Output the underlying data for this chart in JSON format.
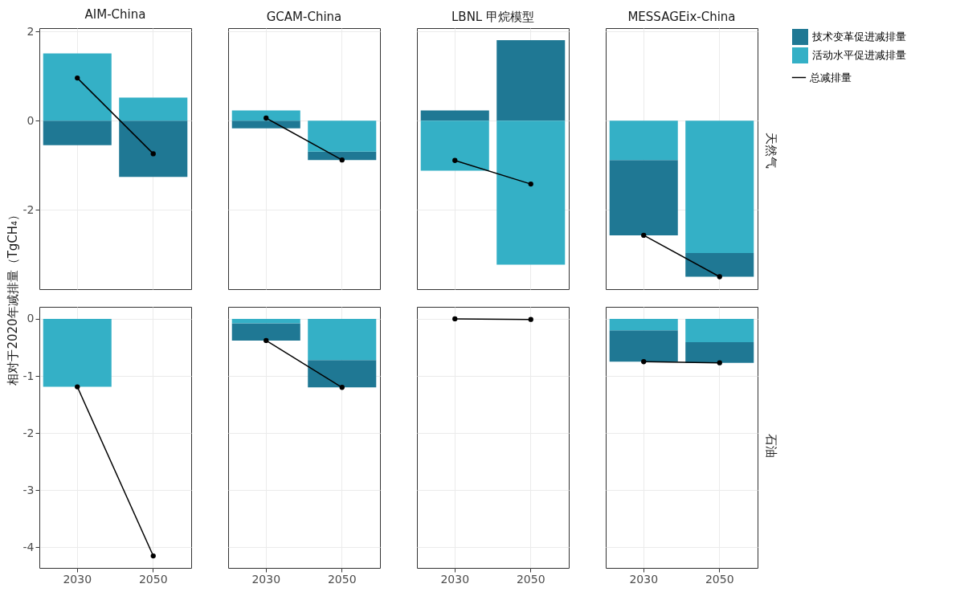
{
  "chart_data": [
    {
      "type": "bar",
      "title": "AIM-China",
      "ylabel": "相对于2020年减排量（TgCH₄）",
      "categories": [
        "2030",
        "2050"
      ],
      "stacked": true,
      "ylim": [
        -3.78,
        2.08
      ],
      "yticks": [
        -2,
        0,
        2
      ],
      "grid": true,
      "legend": "right",
      "tick_labels": "y",
      "series": [
        {
          "name": "技术变革促进减排量",
          "color": "#1f7894",
          "values": [
            -0.55,
            -1.26
          ]
        },
        {
          "name": "活动水平促进减排量",
          "color": "#34b0c6",
          "values": [
            1.51,
            0.52
          ]
        },
        {
          "name": "总减排量",
          "type": "line",
          "color": "#000000",
          "marker": "circle",
          "values": [
            0.96,
            -0.74
          ]
        }
      ]
    },
    {
      "type": "bar",
      "title": "GCAM-China",
      "categories": [
        "2030",
        "2050"
      ],
      "stacked": true,
      "ylim": [
        -3.78,
        2.08
      ],
      "yticks": [
        -2,
        0,
        2
      ],
      "grid": true,
      "legend": "right",
      "tick_labels": false,
      "series": [
        {
          "name": "技术变革促进减排量",
          "color": "#1f7894",
          "values": [
            -0.17,
            -0.19
          ]
        },
        {
          "name": "活动水平促进减排量",
          "color": "#34b0c6",
          "values": [
            0.23,
            -0.69
          ]
        },
        {
          "name": "总减排量",
          "type": "line",
          "color": "#000000",
          "marker": "circle",
          "values": [
            0.06,
            -0.88
          ]
        }
      ]
    },
    {
      "type": "bar",
      "title": "LBNL 甲烷模型",
      "categories": [
        "2030",
        "2050"
      ],
      "stacked": true,
      "ylim": [
        -3.78,
        2.08
      ],
      "yticks": [
        -2,
        0,
        2
      ],
      "grid": true,
      "legend": "right",
      "tick_labels": false,
      "series": [
        {
          "name": "技术变革促进减排量",
          "color": "#1f7894",
          "values": [
            0.23,
            1.81
          ]
        },
        {
          "name": "活动水平促进减排量",
          "color": "#34b0c6",
          "values": [
            -1.12,
            -3.23
          ]
        },
        {
          "name": "总减排量",
          "type": "line",
          "color": "#000000",
          "marker": "circle",
          "values": [
            -0.89,
            -1.42
          ]
        }
      ]
    },
    {
      "type": "bar",
      "title": "MESSAGEix-China",
      "annotations": [
        "天然气"
      ],
      "categories": [
        "2030",
        "2050"
      ],
      "stacked": true,
      "ylim": [
        -3.78,
        2.08
      ],
      "yticks": [
        -2,
        0,
        2
      ],
      "grid": true,
      "legend": "right",
      "tick_labels": false,
      "series": [
        {
          "name": "技术变革促进减排量",
          "color": "#1f7894",
          "values": [
            -1.69,
            -0.53
          ]
        },
        {
          "name": "活动水平促进减排量",
          "color": "#34b0c6",
          "values": [
            -0.88,
            -2.97
          ]
        },
        {
          "name": "总减排量",
          "type": "line",
          "color": "#000000",
          "marker": "circle",
          "values": [
            -2.57,
            -3.5
          ]
        }
      ]
    },
    {
      "type": "bar",
      "categories": [
        "2030",
        "2050"
      ],
      "stacked": true,
      "ylim": [
        -4.36,
        0.21
      ],
      "yticks": [
        -4,
        -3,
        -2,
        -1,
        0
      ],
      "grid": true,
      "legend": "right",
      "series": [
        {
          "name": "技术变革促进减排量",
          "color": "#1f7894",
          "values": [
            0,
            null
          ]
        },
        {
          "name": "活动水平促进减排量",
          "color": "#34b0c6",
          "values": [
            -1.19,
            null
          ]
        },
        {
          "name": "总减排量",
          "type": "line",
          "color": "#000000",
          "marker": "circle",
          "values": [
            -1.19,
            -4.15
          ]
        }
      ]
    },
    {
      "type": "bar",
      "categories": [
        "2030",
        "2050"
      ],
      "stacked": true,
      "ylim": [
        -4.36,
        0.21
      ],
      "yticks": [
        -4,
        -3,
        -2,
        -1,
        0
      ],
      "grid": true,
      "legend": "right",
      "tick_labels": "x",
      "series": [
        {
          "name": "技术变革促进减排量",
          "color": "#1f7894",
          "values": [
            -0.3,
            -0.48
          ]
        },
        {
          "name": "活动水平促进减排量",
          "color": "#34b0c6",
          "values": [
            -0.08,
            -0.72
          ]
        },
        {
          "name": "总减排量",
          "type": "line",
          "color": "#000000",
          "marker": "circle",
          "values": [
            -0.38,
            -1.2
          ]
        }
      ]
    },
    {
      "type": "bar",
      "categories": [
        "2030",
        "2050"
      ],
      "stacked": true,
      "ylim": [
        -4.36,
        0.21
      ],
      "yticks": [
        -4,
        -3,
        -2,
        -1,
        0
      ],
      "grid": true,
      "legend": "right",
      "tick_labels": "x",
      "series": [
        {
          "name": "技术变革促进减排量",
          "color": "#1f7894",
          "values": [
            0,
            0
          ]
        },
        {
          "name": "活动水平促进减排量",
          "color": "#34b0c6",
          "values": [
            0,
            0
          ]
        },
        {
          "name": "总减排量",
          "type": "line",
          "color": "#000000",
          "marker": "circle",
          "values": [
            0,
            -0.01
          ]
        }
      ]
    },
    {
      "type": "bar",
      "annotations": [
        "石油"
      ],
      "categories": [
        "2030",
        "2050"
      ],
      "stacked": true,
      "ylim": [
        -4.36,
        0.21
      ],
      "yticks": [
        -4,
        -3,
        -2,
        -1,
        0
      ],
      "grid": true,
      "legend": "right",
      "tick_labels": "x",
      "series": [
        {
          "name": "技术变革促进减排量",
          "color": "#1f7894",
          "values": [
            -0.55,
            -0.36
          ]
        },
        {
          "name": "活动水平促进减排量",
          "color": "#34b0c6",
          "values": [
            -0.2,
            -0.41
          ]
        },
        {
          "name": "总减排量",
          "type": "line",
          "color": "#000000",
          "marker": "circle",
          "values": [
            -0.75,
            -0.77
          ]
        }
      ]
    }
  ]
}
